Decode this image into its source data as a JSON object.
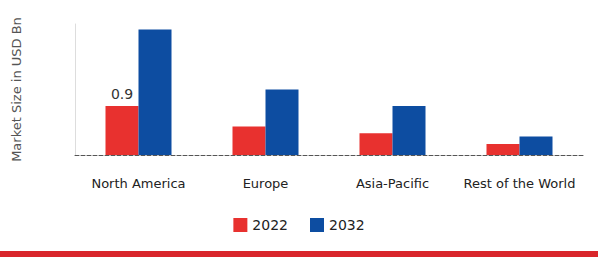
{
  "chart_data": {
    "type": "bar",
    "y_label": "Market Size in USD Bn",
    "categories": [
      "North America",
      "Europe",
      "Asia-Pacific",
      "Rest of the World"
    ],
    "series": [
      {
        "name": "2022",
        "color": "#e8312f",
        "values": [
          0.9,
          0.52,
          0.4,
          0.2
        ],
        "value_labels": [
          "0.9",
          null,
          null,
          null
        ]
      },
      {
        "name": "2032",
        "color": "#0d4da1",
        "values": [
          2.3,
          1.2,
          0.9,
          0.34
        ],
        "value_labels": [
          null,
          null,
          null,
          null
        ]
      }
    ],
    "ylim": [
      0,
      2.4
    ],
    "tick_labels": "x",
    "grid": false,
    "legend": "bottom"
  }
}
